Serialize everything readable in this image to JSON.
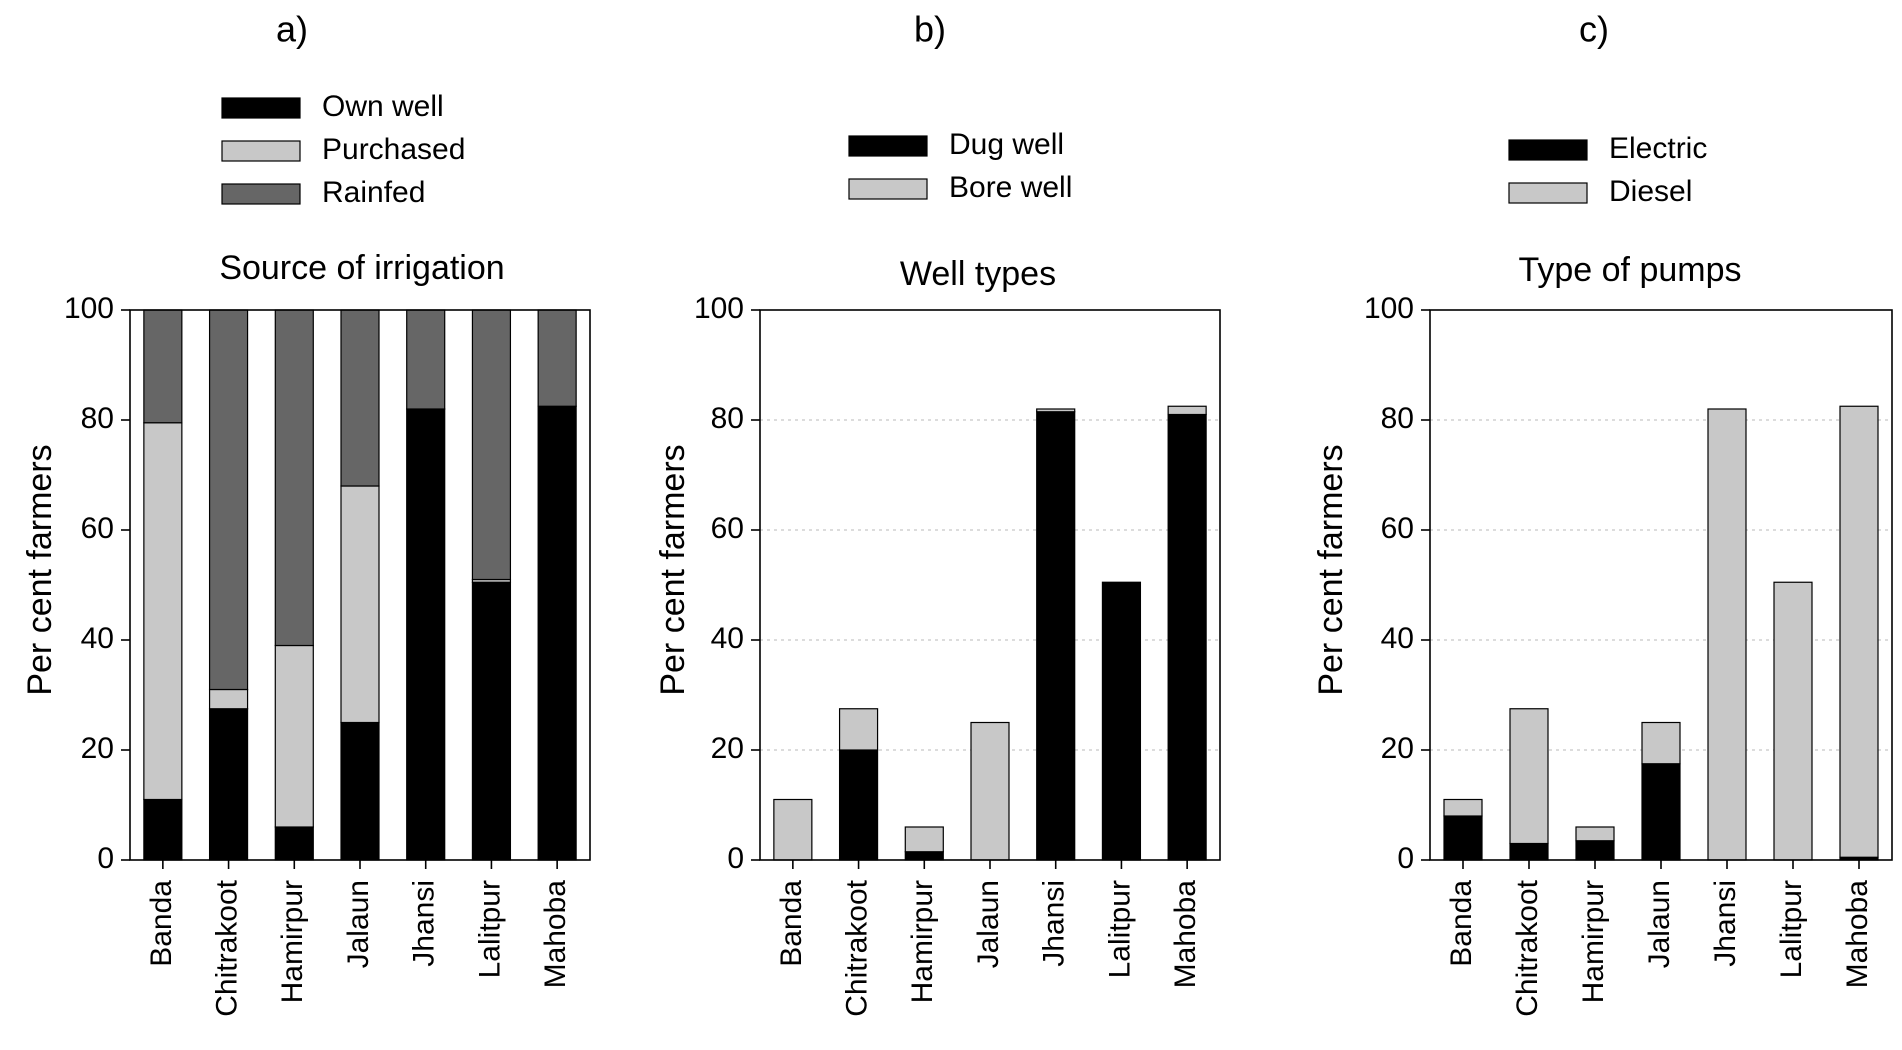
{
  "chart_data": [
    {
      "type": "bar",
      "stacked": true,
      "panel_label": "a)",
      "title": "Source of irrigation",
      "ylabel": "Per cent farmers",
      "xlabel": "",
      "ylim": [
        0,
        100
      ],
      "yticks": [
        "0",
        "20",
        "40",
        "60",
        "80",
        "100"
      ],
      "grid": false,
      "legend_position": "top",
      "categories": [
        "Banda",
        "Chitrakoot",
        "Hamirpur",
        "Jalaun",
        "Jhansi",
        "Lalitpur",
        "Mahoba"
      ],
      "series": [
        {
          "name": "Own well",
          "color": "#000000",
          "values": [
            11,
            27.5,
            6,
            25,
            82,
            50.5,
            82.5
          ]
        },
        {
          "name": "Purchased",
          "color": "#c8c8c8",
          "values": [
            68.5,
            3.5,
            33,
            43,
            0,
            0.5,
            0
          ]
        },
        {
          "name": "Rainfed",
          "color": "#666666",
          "values": [
            20.5,
            69,
            61,
            32,
            18,
            49,
            17.5
          ]
        }
      ]
    },
    {
      "type": "bar",
      "stacked": true,
      "panel_label": "b)",
      "title": "Well types",
      "ylabel": "Per cent farmers",
      "xlabel": "",
      "ylim": [
        0,
        100
      ],
      "yticks": [
        "0",
        "20",
        "40",
        "60",
        "80",
        "100"
      ],
      "grid": true,
      "legend_position": "top",
      "categories": [
        "Banda",
        "Chitrakoot",
        "Hamirpur",
        "Jalaun",
        "Jhansi",
        "Lalitpur",
        "Mahoba"
      ],
      "series": [
        {
          "name": "Dug well",
          "color": "#000000",
          "values": [
            0,
            20,
            1.5,
            0,
            81.5,
            50.5,
            81
          ]
        },
        {
          "name": "Bore well",
          "color": "#c8c8c8",
          "values": [
            11,
            7.5,
            4.5,
            25,
            0.5,
            0,
            1.5
          ]
        }
      ]
    },
    {
      "type": "bar",
      "stacked": true,
      "panel_label": "c)",
      "title": "Type of pumps",
      "ylabel": "Per cent farmers",
      "xlabel": "",
      "ylim": [
        0,
        100
      ],
      "yticks": [
        "0",
        "20",
        "40",
        "60",
        "80",
        "100"
      ],
      "grid": true,
      "legend_position": "top",
      "categories": [
        "Banda",
        "Chitrakoot",
        "Hamirpur",
        "Jalaun",
        "Jhansi",
        "Lalitpur",
        "Mahoba"
      ],
      "series": [
        {
          "name": "Electric",
          "color": "#000000",
          "values": [
            8,
            3,
            3.5,
            17.5,
            0,
            0,
            0.5
          ]
        },
        {
          "name": "Diesel",
          "color": "#c8c8c8",
          "values": [
            3,
            24.5,
            2.5,
            7.5,
            82,
            50.5,
            82
          ]
        }
      ]
    }
  ]
}
